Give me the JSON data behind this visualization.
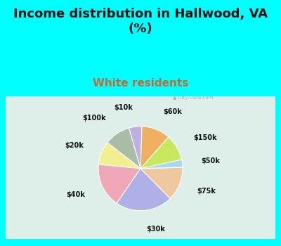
{
  "title": "Income distribution in Hallwood, VA\n(%)",
  "subtitle": "White residents",
  "title_color": "#111111",
  "subtitle_color": "#cc6633",
  "bg_cyan": "#00ffff",
  "bg_chart_center": "#e8f5ee",
  "bg_chart_edge": "#c0ddd0",
  "labels": [
    "$10k",
    "$100k",
    "$20k",
    "$40k",
    "$30k",
    "$75k",
    "$50k",
    "$150k",
    "$60k"
  ],
  "sizes": [
    5,
    10,
    9,
    17,
    22,
    13,
    3,
    10,
    11
  ],
  "colors": [
    "#c0b0e0",
    "#a8bca8",
    "#f0f090",
    "#f0a8b8",
    "#b0b0e8",
    "#f0c8a0",
    "#a8d8f0",
    "#c8e860",
    "#f0b060"
  ],
  "startangle": 88,
  "label_fontsize": 7,
  "title_fontsize": 13,
  "subtitle_fontsize": 11
}
